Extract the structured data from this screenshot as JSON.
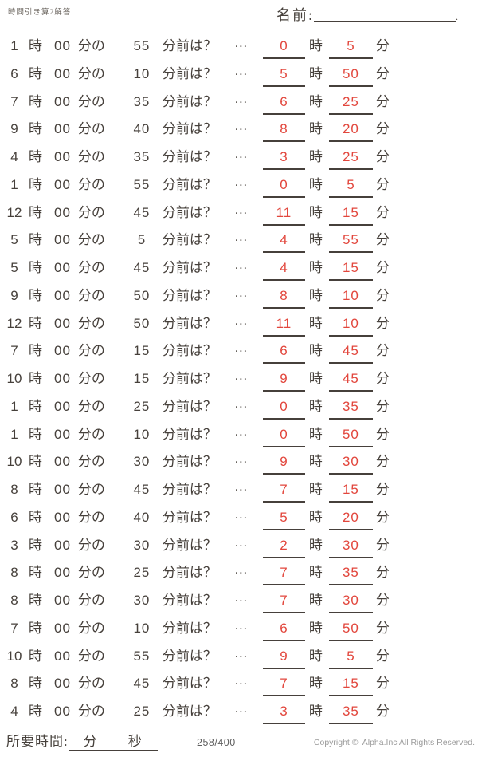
{
  "page": {
    "title": "時間引き算2解答",
    "name_label": "名前:",
    "name_suffix": "."
  },
  "labels": {
    "hour": "時",
    "zero_minutes": "00",
    "minutes_of": "分の",
    "minutes_before": "分前は？",
    "ellipsis": "…",
    "minute": "分"
  },
  "problems": [
    {
      "h": "1",
      "m": "55",
      "ah": "0",
      "am": "5"
    },
    {
      "h": "6",
      "m": "10",
      "ah": "5",
      "am": "50"
    },
    {
      "h": "7",
      "m": "35",
      "ah": "6",
      "am": "25"
    },
    {
      "h": "9",
      "m": "40",
      "ah": "8",
      "am": "20"
    },
    {
      "h": "4",
      "m": "35",
      "ah": "3",
      "am": "25"
    },
    {
      "h": "1",
      "m": "55",
      "ah": "0",
      "am": "5"
    },
    {
      "h": "12",
      "m": "45",
      "ah": "11",
      "am": "15"
    },
    {
      "h": "5",
      "m": "5",
      "ah": "4",
      "am": "55"
    },
    {
      "h": "5",
      "m": "45",
      "ah": "4",
      "am": "15"
    },
    {
      "h": "9",
      "m": "50",
      "ah": "8",
      "am": "10"
    },
    {
      "h": "12",
      "m": "50",
      "ah": "11",
      "am": "10"
    },
    {
      "h": "7",
      "m": "15",
      "ah": "6",
      "am": "45"
    },
    {
      "h": "10",
      "m": "15",
      "ah": "9",
      "am": "45"
    },
    {
      "h": "1",
      "m": "25",
      "ah": "0",
      "am": "35"
    },
    {
      "h": "1",
      "m": "10",
      "ah": "0",
      "am": "50"
    },
    {
      "h": "10",
      "m": "30",
      "ah": "9",
      "am": "30"
    },
    {
      "h": "8",
      "m": "45",
      "ah": "7",
      "am": "15"
    },
    {
      "h": "6",
      "m": "40",
      "ah": "5",
      "am": "20"
    },
    {
      "h": "3",
      "m": "30",
      "ah": "2",
      "am": "30"
    },
    {
      "h": "8",
      "m": "25",
      "ah": "7",
      "am": "35"
    },
    {
      "h": "8",
      "m": "30",
      "ah": "7",
      "am": "30"
    },
    {
      "h": "7",
      "m": "10",
      "ah": "6",
      "am": "50"
    },
    {
      "h": "10",
      "m": "55",
      "ah": "9",
      "am": "5"
    },
    {
      "h": "8",
      "m": "45",
      "ah": "7",
      "am": "15"
    },
    {
      "h": "4",
      "m": "25",
      "ah": "3",
      "am": "35"
    }
  ],
  "footer": {
    "time_label": "所要時間:",
    "minute_label": "分",
    "second_label": "秒",
    "counter": "258/400",
    "copyright": "Copyright ©  Alpha.Inc All Rights Reserved."
  },
  "colors": {
    "ink": "#46403b",
    "red": "#e2463c",
    "gray": "#9b9b9b"
  }
}
